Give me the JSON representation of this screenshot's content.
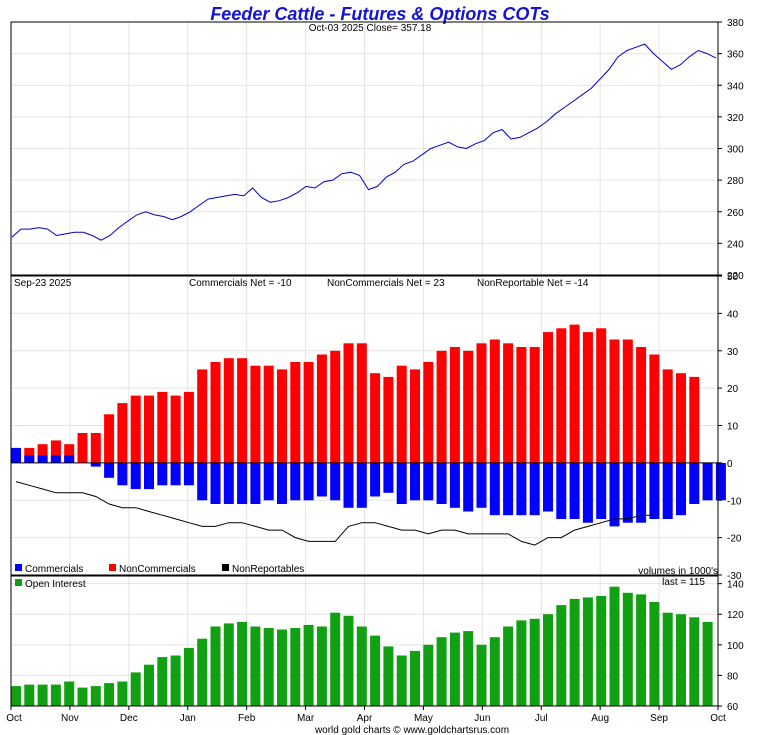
{
  "title": "Feeder Cattle - Futures & Options COTs",
  "footer": "world gold charts © www.goldchartsrus.com",
  "x_axis": {
    "months": [
      "Oct",
      "Nov",
      "Dec",
      "Jan",
      "Feb",
      "Mar",
      "Apr",
      "May",
      "Jun",
      "Jul",
      "Aug",
      "Sep",
      "Oct"
    ]
  },
  "colors": {
    "price": "#0000cc",
    "commercials": "#0000ff",
    "noncommercials": "#ff0000",
    "nonreportables": "#000000",
    "open_interest": "#11a011",
    "grid": "#e4e4e4"
  },
  "chart_data": [
    {
      "type": "line",
      "name": "price",
      "label": "Oct-03  2025   Close= 357.18",
      "date": "Oct-03  2025",
      "close": 357.18,
      "ylim": [
        220,
        380
      ],
      "yticks": [
        220,
        240,
        260,
        280,
        300,
        320,
        340,
        360,
        380
      ],
      "values": [
        244,
        249,
        249,
        250,
        249,
        245,
        246,
        247,
        247,
        245,
        242,
        245,
        250,
        254,
        258,
        260,
        258,
        257,
        255,
        257,
        260,
        264,
        268,
        269,
        270,
        271,
        270,
        275,
        269,
        266,
        267,
        269,
        272,
        276,
        275,
        279,
        280,
        284,
        285,
        283,
        274,
        276,
        282,
        285,
        290,
        292,
        296,
        300,
        302,
        304,
        301,
        300,
        303,
        305,
        310,
        312,
        306,
        307,
        310,
        313,
        317,
        322,
        326,
        330,
        334,
        338,
        344,
        350,
        358,
        362,
        364,
        366,
        360,
        355,
        350,
        353,
        358,
        362,
        360,
        357.18
      ]
    },
    {
      "type": "bar",
      "name": "cot",
      "date_label": "Sep-23  2025",
      "summary": {
        "commercials": "Commercials Net = -10",
        "noncommercials": "NonCommercials Net = 23",
        "nonreportables": "NonReportable Net = -14"
      },
      "ylim": [
        -30,
        50
      ],
      "yticks": [
        -30,
        -20,
        -10,
        0,
        10,
        20,
        30,
        40,
        50
      ],
      "legend": [
        "Commercials",
        "NonCommercials",
        "NonReportables"
      ],
      "units_note": "volumes in 1000's",
      "series": [
        {
          "name": "Commercials",
          "type": "bar",
          "values": [
            4,
            2,
            2,
            2,
            2,
            0,
            -1,
            -4,
            -6,
            -7,
            -7,
            -6,
            -6,
            -6,
            -10,
            -11,
            -11,
            -11,
            -11,
            -10,
            -11,
            -10,
            -10,
            -9,
            -10,
            -12,
            -12,
            -9,
            -8,
            -11,
            -10,
            -10,
            -11,
            -12,
            -13,
            -12,
            -14,
            -14,
            -14,
            -14,
            -13,
            -15,
            -15,
            -16,
            -15,
            -17,
            -16,
            -16,
            -15,
            -15,
            -14,
            -11,
            -10,
            -10
          ]
        },
        {
          "name": "NonCommercials",
          "type": "bar",
          "values": [
            3,
            4,
            5,
            6,
            5,
            8,
            8,
            13,
            16,
            18,
            18,
            19,
            18,
            19,
            25,
            27,
            28,
            28,
            26,
            26,
            25,
            27,
            27,
            29,
            30,
            32,
            32,
            24,
            23,
            26,
            25,
            27,
            30,
            31,
            30,
            32,
            33,
            32,
            31,
            31,
            35,
            36,
            37,
            35,
            36,
            33,
            33,
            31,
            29,
            25,
            24,
            23
          ]
        },
        {
          "name": "NonReportables",
          "type": "line",
          "values": [
            -5,
            -6,
            -7,
            -8,
            -8,
            -8,
            -9,
            -11,
            -12,
            -12,
            -13,
            -14,
            -15,
            -16,
            -17,
            -17,
            -16,
            -16,
            -17,
            -18,
            -18,
            -20,
            -21,
            -21,
            -21,
            -17,
            -16,
            -16,
            -17,
            -18,
            -18,
            -19,
            -18,
            -18,
            -19,
            -19,
            -19,
            -19,
            -21,
            -22,
            -20,
            -20,
            -18,
            -17,
            -16,
            -15,
            -15,
            -14,
            -14
          ]
        }
      ]
    },
    {
      "type": "bar",
      "name": "open_interest",
      "legend": "Open Interest",
      "last_label": "last = 115",
      "ylim": [
        60,
        145
      ],
      "yticks": [
        60,
        80,
        100,
        120,
        140
      ],
      "values": [
        73,
        74,
        74,
        74,
        76,
        72,
        73,
        75,
        76,
        82,
        87,
        92,
        93,
        98,
        104,
        112,
        114,
        115,
        112,
        111,
        110,
        111,
        113,
        112,
        121,
        119,
        112,
        106,
        99,
        93,
        96,
        100,
        105,
        108,
        109,
        100,
        105,
        112,
        116,
        117,
        120,
        126,
        130,
        131,
        132,
        138,
        134,
        133,
        128,
        121,
        120,
        118,
        115
      ]
    }
  ]
}
